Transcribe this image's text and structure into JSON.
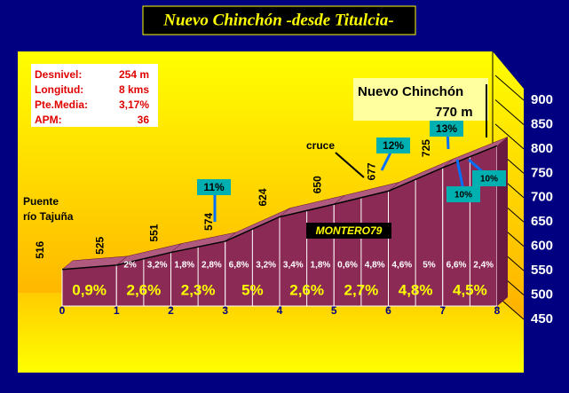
{
  "chart_data": {
    "type": "area",
    "title": "Nuevo Chinchón -desde Titulcia-",
    "x": [
      0,
      1,
      2,
      3,
      4,
      5,
      6,
      7,
      8
    ],
    "values": [
      516,
      525,
      551,
      574,
      624,
      650,
      677,
      725,
      770
    ],
    "color": "#8b2a55",
    "xlim": [
      0,
      8
    ],
    "xticks": [
      0,
      1,
      2,
      3,
      4,
      5,
      6,
      7,
      8
    ],
    "ylim": [
      450,
      900
    ],
    "yticks": [
      450,
      500,
      550,
      600,
      650,
      700,
      750,
      800,
      850,
      900
    ],
    "km_gradients": [
      "0,9%",
      "2,6%",
      "2,3%",
      "5%",
      "2,6%",
      "2,7%",
      "4,8%",
      "4,5%"
    ],
    "half_km_gradients": [
      "2%",
      "3,2%",
      "1,8%",
      "2,8%",
      "6,8%",
      "3,2%",
      "3,4%",
      "1,8%",
      "0,6%",
      "4,8%",
      "4,6%",
      "5%",
      "6,6%",
      "2,4%"
    ],
    "info": [
      [
        "Desnivel:",
        "254 m"
      ],
      [
        "Longitud:",
        "8 kms"
      ],
      [
        "Pte.Media:",
        "3,17%"
      ],
      [
        "APM:",
        "36"
      ]
    ],
    "annotations": {
      "start": [
        "Puente",
        "río Tajuña"
      ],
      "junction": "cruce",
      "summit": "Nuevo Chinchón",
      "summit_altitude": "770 m",
      "author": "MONTERO79",
      "ramps": [
        "11%",
        "12%",
        "13%",
        "10%",
        "10%"
      ]
    }
  }
}
